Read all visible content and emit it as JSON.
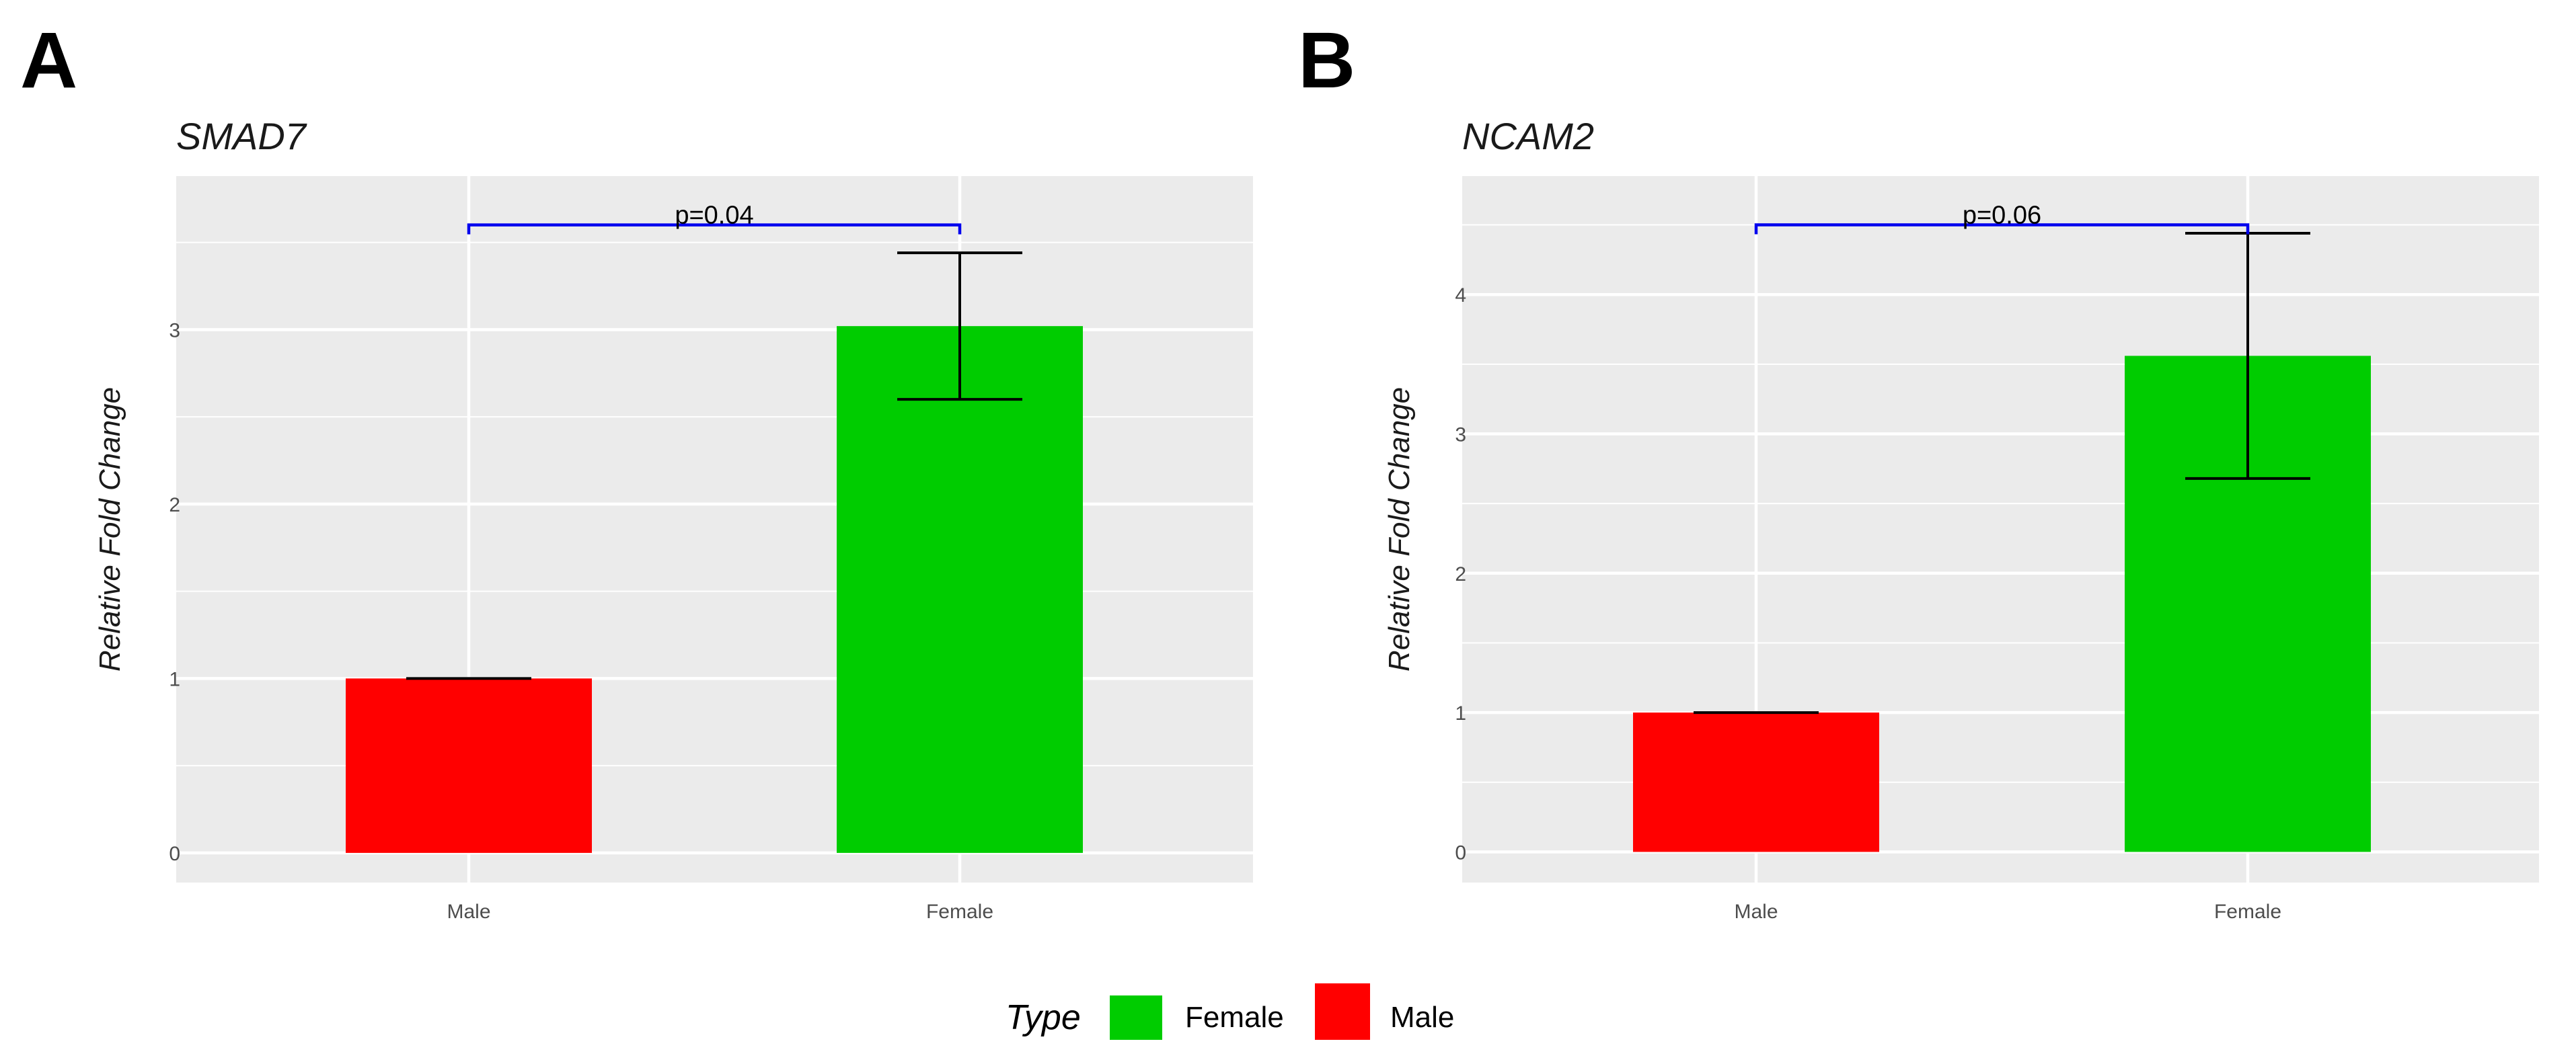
{
  "legend": {
    "title": "Type",
    "items": [
      {
        "label": "Female",
        "color": "#00CC00"
      },
      {
        "label": "Male",
        "color": "#FF0000"
      }
    ]
  },
  "chart_data": [
    {
      "type": "bar",
      "panel": "A",
      "title": "SMAD7",
      "xlabel": "",
      "ylabel": "Relative Fold Change",
      "categories": [
        "Male",
        "Female"
      ],
      "values": [
        1.0,
        3.02
      ],
      "error": [
        0.0,
        0.42
      ],
      "colors": [
        "#FF0000",
        "#00CC00"
      ],
      "ylim": [
        -0.17,
        3.88
      ],
      "yticks": [
        0,
        1,
        2,
        3
      ],
      "grid": true,
      "significance": {
        "label": "p=0.04",
        "y": 3.6,
        "color": "#0000EE"
      }
    },
    {
      "type": "bar",
      "panel": "B",
      "title": "NCAM2",
      "xlabel": "",
      "ylabel": "Relative Fold Change",
      "categories": [
        "Male",
        "Female"
      ],
      "values": [
        1.0,
        3.56
      ],
      "error": [
        0.0,
        0.88
      ],
      "colors": [
        "#FF0000",
        "#00CC00"
      ],
      "ylim": [
        -0.22,
        4.85
      ],
      "yticks": [
        0,
        1,
        2,
        3,
        4
      ],
      "grid": true,
      "significance": {
        "label": "p=0.06",
        "y": 4.5,
        "color": "#0000EE"
      }
    }
  ]
}
